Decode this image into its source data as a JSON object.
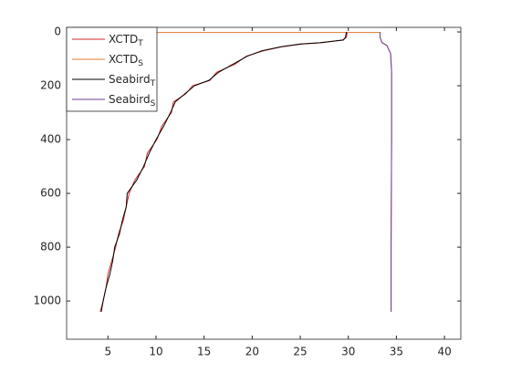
{
  "chart_data": {
    "type": "line",
    "y_reversed": true,
    "xlim": [
      0.7,
      41.7
    ],
    "ylim": [
      -17,
      1142
    ],
    "xticks": [
      5,
      10,
      15,
      20,
      25,
      30,
      35,
      40
    ],
    "yticks": [
      0,
      200,
      400,
      600,
      800,
      1000
    ],
    "legend": "top-left",
    "series": [
      {
        "name": "XCTD",
        "subscript": "T",
        "color": "#d62728",
        "x": [
          29.9,
          29.8,
          29.4,
          27.2,
          25.2,
          23.1,
          21.2,
          19.4,
          18.2,
          16.3,
          15.6,
          13.8,
          13.1,
          11.8,
          11.6,
          10.6,
          10.1,
          9.1,
          8.8,
          7.8,
          7.2,
          6.9,
          6.6,
          6.1,
          5.8,
          5.4,
          5.0,
          4.8,
          4.5,
          4.2
        ],
        "values": [
          0,
          20,
          30,
          40,
          45,
          55,
          70,
          90,
          120,
          150,
          180,
          200,
          230,
          260,
          300,
          350,
          400,
          450,
          500,
          550,
          600,
          650,
          700,
          750,
          800,
          850,
          900,
          950,
          1000,
          1040
        ]
      },
      {
        "name": "XCTD",
        "subscript": "S",
        "color": "#e0782f",
        "x": [
          1.0,
          33.3,
          33.3,
          33.5,
          34.0,
          34.4,
          34.5,
          34.5,
          34.45,
          34.45
        ],
        "values": [
          2,
          2,
          20,
          40,
          50,
          80,
          150,
          400,
          800,
          1040
        ]
      },
      {
        "name": "Seabird",
        "subscript": "T",
        "color": "#000000",
        "x": [
          29.8,
          29.7,
          29.5,
          27.0,
          25.0,
          23.0,
          21.0,
          19.5,
          18.0,
          16.5,
          15.5,
          14.0,
          13.0,
          12.0,
          11.5,
          10.8,
          10.0,
          9.3,
          8.7,
          8.0,
          7.0,
          6.9,
          6.5,
          6.2,
          5.7,
          5.5,
          5.2,
          4.8,
          4.5,
          4.3
        ],
        "values": [
          0,
          20,
          30,
          40,
          45,
          55,
          70,
          90,
          120,
          150,
          180,
          200,
          230,
          260,
          300,
          350,
          400,
          450,
          500,
          550,
          600,
          650,
          700,
          750,
          800,
          850,
          900,
          950,
          1000,
          1040
        ]
      },
      {
        "name": "Seabird",
        "subscript": "S",
        "color": "#6a3d9a",
        "x": [
          33.3,
          33.3,
          33.5,
          34.0,
          34.4,
          34.5,
          34.5,
          34.45,
          34.45
        ],
        "values": [
          0,
          20,
          40,
          50,
          80,
          150,
          400,
          800,
          1040
        ]
      }
    ]
  }
}
